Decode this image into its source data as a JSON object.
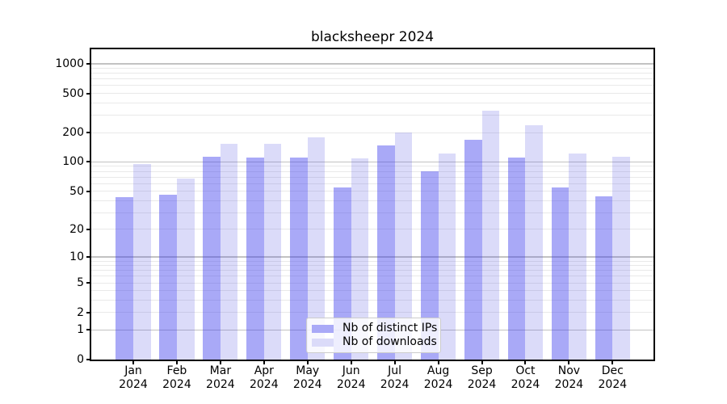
{
  "chart_data": {
    "type": "bar",
    "title": "blacksheepr 2024",
    "categories": [
      "Jan",
      "Feb",
      "Mar",
      "Apr",
      "May",
      "Jun",
      "Jul",
      "Aug",
      "Sep",
      "Oct",
      "Nov",
      "Dec"
    ],
    "year_label": "2024",
    "series": [
      {
        "name": "Nb of distinct IPs",
        "color": "#a9a9f7",
        "fill": "rgba(64,64,237,0.45)",
        "values": [
          43,
          46,
          114,
          110,
          110,
          55,
          147,
          80,
          170,
          111,
          55,
          44
        ]
      },
      {
        "name": "Nb of downloads",
        "color": "#dbdbf9",
        "fill": "rgba(75,75,225,0.2)",
        "values": [
          95,
          68,
          154,
          153,
          180,
          109,
          201,
          123,
          333,
          238,
          122,
          114
        ]
      }
    ],
    "xlabel": "",
    "ylabel": "",
    "yscale": "log1p",
    "ylim": [
      0,
      1400
    ],
    "yticks": [
      0,
      1,
      2,
      5,
      10,
      20,
      50,
      100,
      200,
      500,
      1000
    ],
    "grid": "horizontal major+minor",
    "legend_position": "lower center"
  }
}
